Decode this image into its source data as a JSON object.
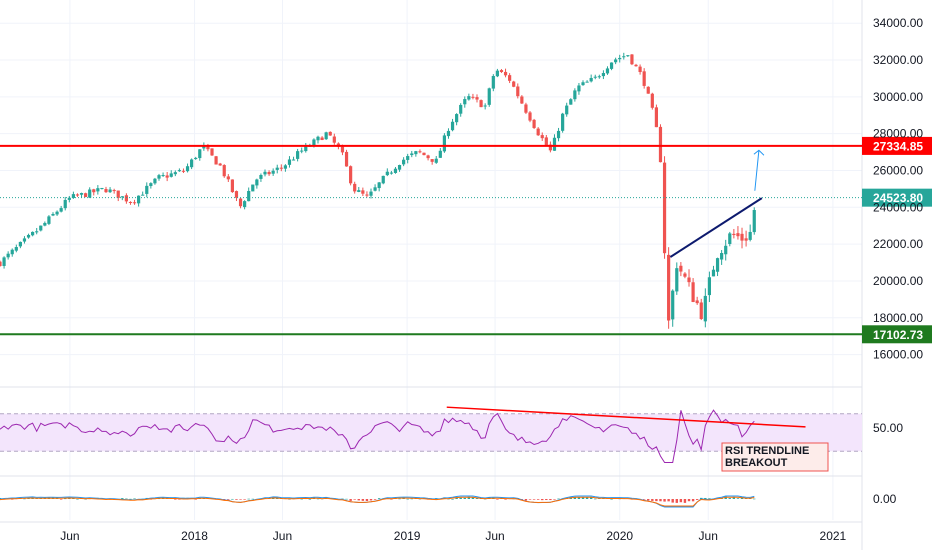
{
  "chart_data": {
    "type": "candlestick",
    "instrument": "",
    "price_axis": {
      "range": [
        15000,
        34500
      ],
      "ticks": [
        16000,
        18000,
        20000,
        22000,
        24000,
        26000,
        28000,
        30000,
        32000,
        34000
      ],
      "tick_labels": [
        "16000.00",
        "18000.00",
        "20000.00",
        "22000.00",
        "24000.00",
        "26000.00",
        "28000.00",
        "30000.00",
        "32000.00",
        "34000.00"
      ]
    },
    "time_axis": {
      "labels": [
        "Jun",
        "2018",
        "Jun",
        "2019",
        "Jun",
        "2020",
        "Jun",
        "2021"
      ],
      "label_dates": [
        "2017-06-01",
        "2018-01-01",
        "2018-06-01",
        "2019-01-01",
        "2019-06-01",
        "2020-01-01",
        "2020-06-01",
        "2021-01-01"
      ],
      "start": "2017-02-01",
      "end": "2021-02-20"
    },
    "price_waypoints": [
      [
        "2017-02-01",
        21000
      ],
      [
        "2017-04-15",
        23000
      ],
      [
        "2017-06-01",
        24500
      ],
      [
        "2017-08-01",
        25000
      ],
      [
        "2017-09-15",
        24300
      ],
      [
        "2017-11-01",
        25600
      ],
      [
        "2017-12-15",
        26000
      ],
      [
        "2018-01-15",
        27300
      ],
      [
        "2018-02-15",
        26200
      ],
      [
        "2018-03-20",
        24000
      ],
      [
        "2018-04-15",
        25500
      ],
      [
        "2018-06-01",
        26200
      ],
      [
        "2018-07-01",
        27000
      ],
      [
        "2018-08-15",
        28000
      ],
      [
        "2018-09-10",
        27000
      ],
      [
        "2018-10-01",
        25000
      ],
      [
        "2018-10-25",
        24500
      ],
      [
        "2018-11-20",
        25500
      ],
      [
        "2018-12-20",
        26500
      ],
      [
        "2019-01-20",
        27000
      ],
      [
        "2019-02-20",
        26500
      ],
      [
        "2019-03-15",
        28500
      ],
      [
        "2019-04-15",
        30000
      ],
      [
        "2019-05-15",
        29500
      ],
      [
        "2019-06-01",
        31500
      ],
      [
        "2019-06-25",
        31000
      ],
      [
        "2019-07-20",
        29500
      ],
      [
        "2019-08-15",
        28000
      ],
      [
        "2019-09-05",
        27000
      ],
      [
        "2019-09-25",
        29000
      ],
      [
        "2019-10-20",
        30500
      ],
      [
        "2019-11-20",
        31000
      ],
      [
        "2019-12-20",
        32000
      ],
      [
        "2020-01-15",
        32300
      ],
      [
        "2020-02-10",
        31000
      ],
      [
        "2020-02-28",
        29000
      ],
      [
        "2020-03-10",
        27300
      ],
      [
        "2020-03-24",
        17500
      ],
      [
        "2020-04-08",
        21000
      ],
      [
        "2020-05-01",
        19500
      ],
      [
        "2020-05-22",
        18200
      ],
      [
        "2020-06-15",
        21500
      ],
      [
        "2020-07-10",
        22500
      ],
      [
        "2020-07-31",
        22300
      ],
      [
        "2020-08-12",
        22600
      ],
      [
        "2020-08-22",
        24400
      ]
    ],
    "horizontal_levels": [
      {
        "value": 27334.85,
        "label": "27334.85",
        "color": "#ff0000"
      },
      {
        "value": 17102.73,
        "label": "17102.73",
        "color": "#1f7a1f"
      },
      {
        "value": 24523.8,
        "label": "24523.80",
        "color": "#26a69a",
        "style": "dotted",
        "role": "last-price"
      }
    ],
    "trendline": {
      "from": [
        "2020-03-28",
        21300
      ],
      "to": [
        "2020-09-01",
        24500
      ],
      "color": "#0d1a6e"
    },
    "projection_arrow": {
      "from": [
        "2020-08-20",
        24900
      ],
      "to": [
        "2020-08-27",
        27100
      ],
      "color": "#2196f3"
    },
    "rsi": {
      "axis_label": "50.00",
      "band_upper": 70,
      "band_lower": 30,
      "band_color": "#f3e5fc",
      "line_color": "#9c27b0",
      "trendline_color": "#ff0000",
      "annotation": "RSI TRENDLINE BREAKOUT"
    },
    "macd": {
      "axis_label": "0.00",
      "macd_color": "#2196f3",
      "signal_color": "#ff6d00",
      "hist_up_color": "#26a69a",
      "hist_down_color": "#ef5350"
    },
    "colors": {
      "up": "#26a69a",
      "down": "#ef5350",
      "grid": "#f0f3fa",
      "text": "#131722",
      "divider": "#e0e3eb"
    }
  }
}
